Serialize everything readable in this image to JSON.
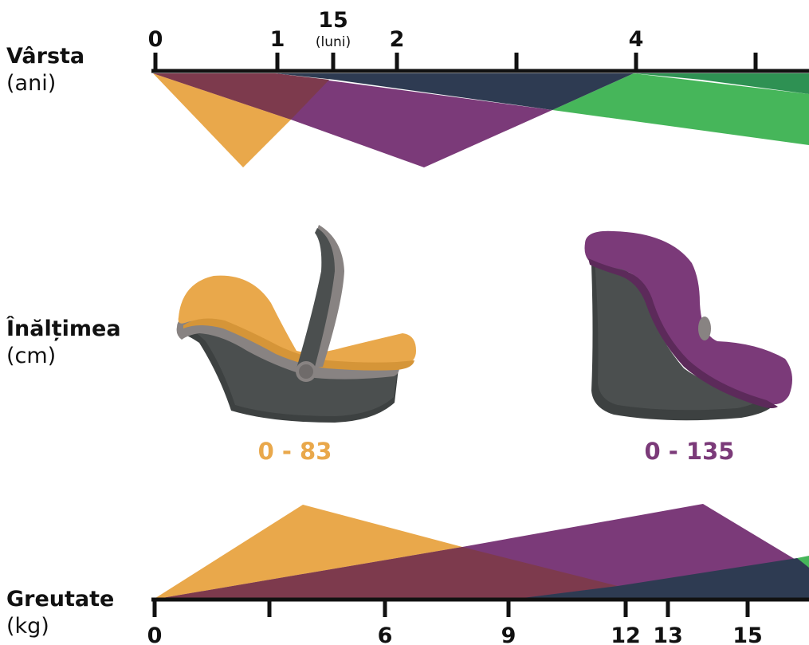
{
  "labels": {
    "age": {
      "name": "Vârsta",
      "unit": "(ani)"
    },
    "height": {
      "name": "Înălțimea",
      "unit": "(cm)"
    },
    "weight": {
      "name": "Greutate",
      "unit": "(kg)"
    }
  },
  "age_axis": {
    "ticks": [
      {
        "text": "0"
      },
      {
        "text": "1"
      },
      {
        "text": "15",
        "sub": "(luni)"
      },
      {
        "text": "2"
      },
      {
        "text": ""
      },
      {
        "text": "4"
      },
      {
        "text": ""
      }
    ]
  },
  "weight_axis": {
    "ticks": [
      {
        "text": "0"
      },
      {
        "text": ""
      },
      {
        "text": "6"
      },
      {
        "text": "9"
      },
      {
        "text": "12"
      },
      {
        "text": "13"
      },
      {
        "text": "15"
      }
    ]
  },
  "seats": [
    {
      "range": "0 - 83",
      "color": "#e9a84b"
    },
    {
      "range": "0 - 135",
      "color": "#7b3a79"
    }
  ],
  "colors": {
    "orange": "#e9a84b",
    "purple": "#7b3a79",
    "navy": "#2e3b52",
    "green": "#46b65a",
    "dark_green": "#2e9153",
    "overlap": "#7d3a4d",
    "seat_dark": "#4b4f4f",
    "seat_mid": "#888382",
    "axis": "#111111"
  }
}
